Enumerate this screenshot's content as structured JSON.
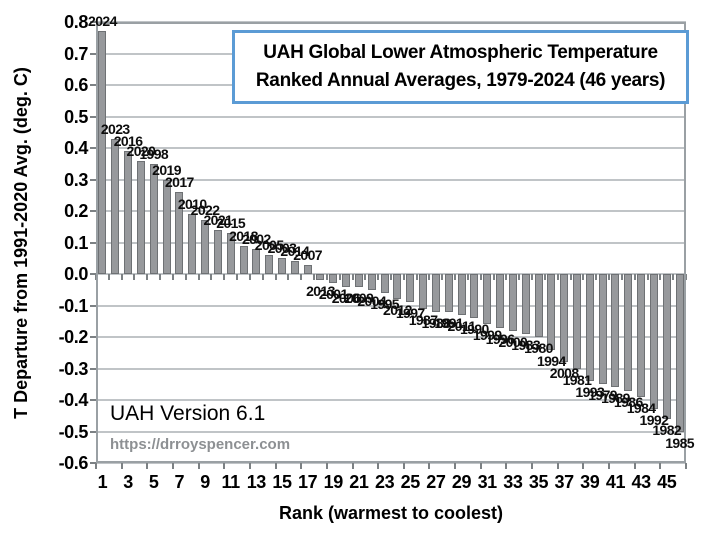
{
  "title_box": {
    "line1": "UAH Global Lower Atmospheric Temperature",
    "line2": "Ranked Annual Averages, 1979-2024 (46 years)",
    "border_color": "#5b9bd5"
  },
  "annotations": {
    "version": "UAH Version 6.1",
    "url": "https://drroyspencer.com"
  },
  "chart_data": {
    "type": "bar",
    "title": "UAH Global Lower Atmospheric Temperature Ranked Annual Averages, 1979-2024 (46 years)",
    "xlabel": "Rank (warmest to coolest)",
    "ylabel": "T Departure from 1991-2020 Avg. (deg. C)",
    "ylim": [
      -0.6,
      0.8
    ],
    "grid": true,
    "legend": false,
    "bar_color": "#97999c",
    "y_ticks": [
      "0.8",
      "0.7",
      "0.6",
      "0.5",
      "0.4",
      "0.3",
      "0.2",
      "0.1",
      "0.0",
      "-0.1",
      "-0.2",
      "-0.3",
      "-0.4",
      "-0.5",
      "-0.6"
    ],
    "x_tick_labels": [
      "1",
      "3",
      "5",
      "7",
      "9",
      "11",
      "13",
      "15",
      "17",
      "19",
      "21",
      "23",
      "25",
      "27",
      "29",
      "31",
      "33",
      "35",
      "37",
      "39",
      "41",
      "43",
      "45"
    ],
    "points": [
      {
        "rank": 1,
        "year": "2024",
        "value": 0.77
      },
      {
        "rank": 2,
        "year": "2023",
        "value": 0.43
      },
      {
        "rank": 3,
        "year": "2016",
        "value": 0.39
      },
      {
        "rank": 4,
        "year": "2020",
        "value": 0.36
      },
      {
        "rank": 5,
        "year": "1998",
        "value": 0.35
      },
      {
        "rank": 6,
        "year": "2019",
        "value": 0.3
      },
      {
        "rank": 7,
        "year": "2017",
        "value": 0.26
      },
      {
        "rank": 8,
        "year": "2010",
        "value": 0.19
      },
      {
        "rank": 9,
        "year": "2022",
        "value": 0.17
      },
      {
        "rank": 10,
        "year": "2021",
        "value": 0.14
      },
      {
        "rank": 11,
        "year": "2015",
        "value": 0.13
      },
      {
        "rank": 12,
        "year": "2018",
        "value": 0.09
      },
      {
        "rank": 13,
        "year": "2002",
        "value": 0.08
      },
      {
        "rank": 14,
        "year": "2005",
        "value": 0.06
      },
      {
        "rank": 15,
        "year": "2003",
        "value": 0.05
      },
      {
        "rank": 16,
        "year": "2014",
        "value": 0.04
      },
      {
        "rank": 17,
        "year": "2007",
        "value": 0.03
      },
      {
        "rank": 18,
        "year": "2013",
        "value": -0.02
      },
      {
        "rank": 19,
        "year": "2001",
        "value": -0.03
      },
      {
        "rank": 20,
        "year": "2006",
        "value": -0.04
      },
      {
        "rank": 21,
        "year": "2009",
        "value": -0.04
      },
      {
        "rank": 22,
        "year": "2004",
        "value": -0.05
      },
      {
        "rank": 23,
        "year": "1995",
        "value": -0.06
      },
      {
        "rank": 24,
        "year": "2012",
        "value": -0.08
      },
      {
        "rank": 25,
        "year": "1997",
        "value": -0.09
      },
      {
        "rank": 26,
        "year": "1987",
        "value": -0.11
      },
      {
        "rank": 27,
        "year": "1988",
        "value": -0.12
      },
      {
        "rank": 28,
        "year": "1991",
        "value": -0.12
      },
      {
        "rank": 29,
        "year": "2011",
        "value": -0.13
      },
      {
        "rank": 30,
        "year": "1990",
        "value": -0.14
      },
      {
        "rank": 31,
        "year": "1999",
        "value": -0.16
      },
      {
        "rank": 32,
        "year": "1996",
        "value": -0.17
      },
      {
        "rank": 33,
        "year": "2000",
        "value": -0.18
      },
      {
        "rank": 34,
        "year": "1983",
        "value": -0.19
      },
      {
        "rank": 35,
        "year": "1980",
        "value": -0.2
      },
      {
        "rank": 36,
        "year": "1994",
        "value": -0.24
      },
      {
        "rank": 37,
        "year": "2008",
        "value": -0.28
      },
      {
        "rank": 38,
        "year": "1981",
        "value": -0.3
      },
      {
        "rank": 39,
        "year": "1993",
        "value": -0.34
      },
      {
        "rank": 40,
        "year": "1979",
        "value": -0.35
      },
      {
        "rank": 41,
        "year": "1989",
        "value": -0.36
      },
      {
        "rank": 42,
        "year": "1986",
        "value": -0.37
      },
      {
        "rank": 43,
        "year": "1984",
        "value": -0.39
      },
      {
        "rank": 44,
        "year": "1992",
        "value": -0.43
      },
      {
        "rank": 45,
        "year": "1982",
        "value": -0.46
      },
      {
        "rank": 46,
        "year": "1985",
        "value": -0.5
      }
    ]
  }
}
